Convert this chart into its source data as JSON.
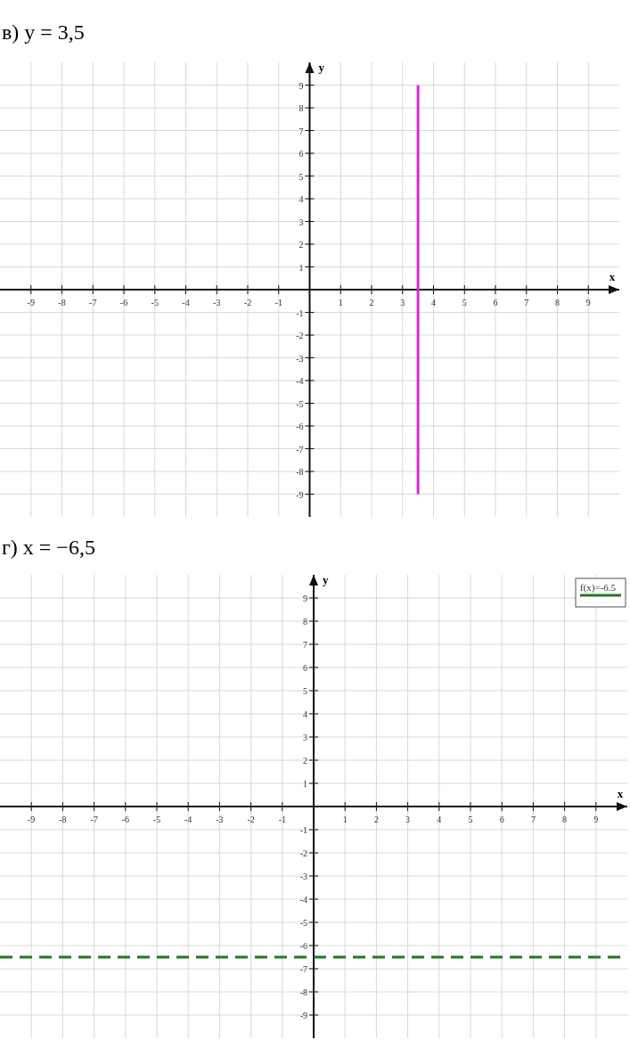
{
  "chart_data": [
    {
      "type": "line",
      "title": "в) y = 3,5",
      "xlabel": "x",
      "ylabel": "y",
      "xlim": [
        -10,
        10
      ],
      "ylim": [
        -10,
        10
      ],
      "xticks": [
        -9,
        -8,
        -7,
        -6,
        -5,
        -4,
        -3,
        -2,
        -1,
        1,
        2,
        3,
        4,
        5,
        6,
        7,
        8,
        9
      ],
      "yticks": [
        -9,
        -8,
        -7,
        -6,
        -5,
        -4,
        -3,
        -2,
        -1,
        1,
        2,
        3,
        4,
        5,
        6,
        7,
        8,
        9
      ],
      "grid": true,
      "series": [
        {
          "color": "#d62ad6",
          "x": [
            3.5,
            3.5
          ],
          "values": [
            -9,
            9
          ]
        }
      ]
    },
    {
      "type": "line",
      "title": "г) x = −6,5",
      "xlabel": "x",
      "ylabel": "y",
      "xlim": [
        -10,
        10
      ],
      "ylim": [
        -10,
        10
      ],
      "xticks": [
        -9,
        -8,
        -7,
        -6,
        -5,
        -4,
        -3,
        -2,
        -1,
        1,
        2,
        3,
        4,
        5,
        6,
        7,
        8,
        9
      ],
      "yticks": [
        -9,
        -8,
        -7,
        -6,
        -5,
        -4,
        -3,
        -2,
        -1,
        1,
        2,
        3,
        4,
        5,
        6,
        7,
        8,
        9
      ],
      "grid": true,
      "legend": "top right",
      "line_style": "dashed",
      "series": [
        {
          "name": "f(x)=-6.5",
          "color": "#1e7a1e",
          "x": [
            -10,
            10
          ],
          "values": [
            -6.5,
            -6.5
          ]
        }
      ]
    }
  ]
}
